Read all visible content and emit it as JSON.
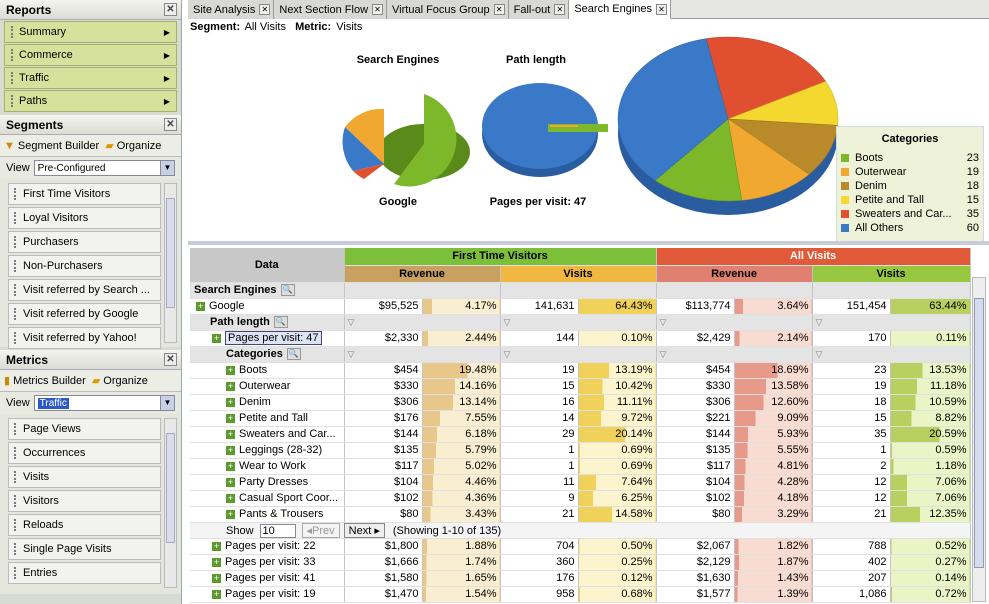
{
  "sidebar": {
    "reports_title": "Reports",
    "reports": [
      "Summary",
      "Commerce",
      "Traffic",
      "Paths"
    ],
    "segments_title": "Segments",
    "segment_builder": "Segment Builder",
    "organize": "Organize",
    "view_label": "View",
    "segments_view": "Pre-Configured",
    "segments": [
      "First Time Visitors",
      "Loyal Visitors",
      "Purchasers",
      "Non-Purchasers",
      "Visit referred by Search ...",
      "Visit referred by Google",
      "Visit referred by Yahoo!"
    ],
    "metrics_title": "Metrics",
    "metrics_builder": "Metrics Builder",
    "metrics_view": "Traffic",
    "metrics": [
      "Page Views",
      "Occurrences",
      "Visits",
      "Visitors",
      "Reloads",
      "Single Page Visits",
      "Entries"
    ]
  },
  "tabs": [
    "Site Analysis",
    "Next Section Flow",
    "Virtual Focus Group",
    "Fall-out",
    "Search Engines"
  ],
  "toolbar": {
    "segment_label": "Segment:",
    "segment_value": "All Visits",
    "metric_label": "Metric:",
    "metric_value": "Visits"
  },
  "charts": {
    "search_engines_title": "Search Engines",
    "search_engines_caption": "Google",
    "path_length_title": "Path length",
    "path_length_caption": "Pages per visit: 47"
  },
  "chart_data": [
    {
      "type": "pie",
      "title": "Categories",
      "categories": [
        "Boots",
        "Outerwear",
        "Denim",
        "Petite and Tall",
        "Sweaters and Car...",
        "All Others"
      ],
      "values": [
        23,
        19,
        18,
        15,
        35,
        60
      ]
    }
  ],
  "colors": {
    "Boots": "#7cb82a",
    "Outerwear": "#f0a830",
    "Denim": "#b88a2a",
    "Petite and Tall": "#f4d830",
    "Sweaters and Car...": "#e05030",
    "All Others": "#3a78c8"
  },
  "grid": {
    "data_header": "Data",
    "groups": [
      "First Time Visitors",
      "All Visits"
    ],
    "cols": [
      "Revenue",
      "Visits",
      "Revenue",
      "Visits"
    ],
    "search_engines": "Search Engines",
    "google": {
      "label": "Google",
      "v": [
        "$95,525",
        "4.17%",
        "141,631",
        "64.43%",
        "$113,774",
        "3.64%",
        "151,454",
        "63.44%"
      ]
    },
    "path_length": "Path length",
    "ppv47": {
      "label": "Pages per visit: 47",
      "v": [
        "$2,330",
        "2.44%",
        "144",
        "0.10%",
        "$2,429",
        "2.14%",
        "170",
        "0.11%"
      ]
    },
    "categories": "Categories",
    "rows": [
      {
        "label": "Boots",
        "v": [
          "$454",
          "19.48%",
          "19",
          "13.19%",
          "$454",
          "18.69%",
          "23",
          "13.53%"
        ]
      },
      {
        "label": "Outerwear",
        "v": [
          "$330",
          "14.16%",
          "15",
          "10.42%",
          "$330",
          "13.58%",
          "19",
          "11.18%"
        ]
      },
      {
        "label": "Denim",
        "v": [
          "$306",
          "13.14%",
          "16",
          "11.11%",
          "$306",
          "12.60%",
          "18",
          "10.59%"
        ]
      },
      {
        "label": "Petite and Tall",
        "v": [
          "$176",
          "7.55%",
          "14",
          "9.72%",
          "$221",
          "9.09%",
          "15",
          "8.82%"
        ]
      },
      {
        "label": "Sweaters and Car...",
        "v": [
          "$144",
          "6.18%",
          "29",
          "20.14%",
          "$144",
          "5.93%",
          "35",
          "20.59%"
        ]
      },
      {
        "label": "Leggings (28-32)",
        "v": [
          "$135",
          "5.79%",
          "1",
          "0.69%",
          "$135",
          "5.55%",
          "1",
          "0.59%"
        ]
      },
      {
        "label": "Wear to Work",
        "v": [
          "$117",
          "5.02%",
          "1",
          "0.69%",
          "$117",
          "4.81%",
          "2",
          "1.18%"
        ]
      },
      {
        "label": "Party Dresses",
        "v": [
          "$104",
          "4.46%",
          "11",
          "7.64%",
          "$104",
          "4.28%",
          "12",
          "7.06%"
        ]
      },
      {
        "label": "Casual Sport Coor...",
        "v": [
          "$102",
          "4.36%",
          "9",
          "6.25%",
          "$102",
          "4.18%",
          "12",
          "7.06%"
        ]
      },
      {
        "label": "Pants & Trousers",
        "v": [
          "$80",
          "3.43%",
          "21",
          "14.58%",
          "$80",
          "3.29%",
          "21",
          "12.35%"
        ]
      }
    ],
    "show_label": "Show",
    "show_value": "10",
    "prev": "Prev",
    "next": "Next",
    "showing": "(Showing 1-10 of 135)",
    "more": [
      {
        "label": "Pages per visit: 22",
        "v": [
          "$1,800",
          "1.88%",
          "704",
          "0.50%",
          "$2,067",
          "1.82%",
          "788",
          "0.52%"
        ]
      },
      {
        "label": "Pages per visit: 33",
        "v": [
          "$1,666",
          "1.74%",
          "360",
          "0.25%",
          "$2,129",
          "1.87%",
          "402",
          "0.27%"
        ]
      },
      {
        "label": "Pages per visit: 41",
        "v": [
          "$1,580",
          "1.65%",
          "176",
          "0.12%",
          "$1,630",
          "1.43%",
          "207",
          "0.14%"
        ]
      },
      {
        "label": "Pages per visit: 19",
        "v": [
          "$1,470",
          "1.54%",
          "958",
          "0.68%",
          "$1,577",
          "1.39%",
          "1,086",
          "0.72%"
        ]
      }
    ]
  }
}
